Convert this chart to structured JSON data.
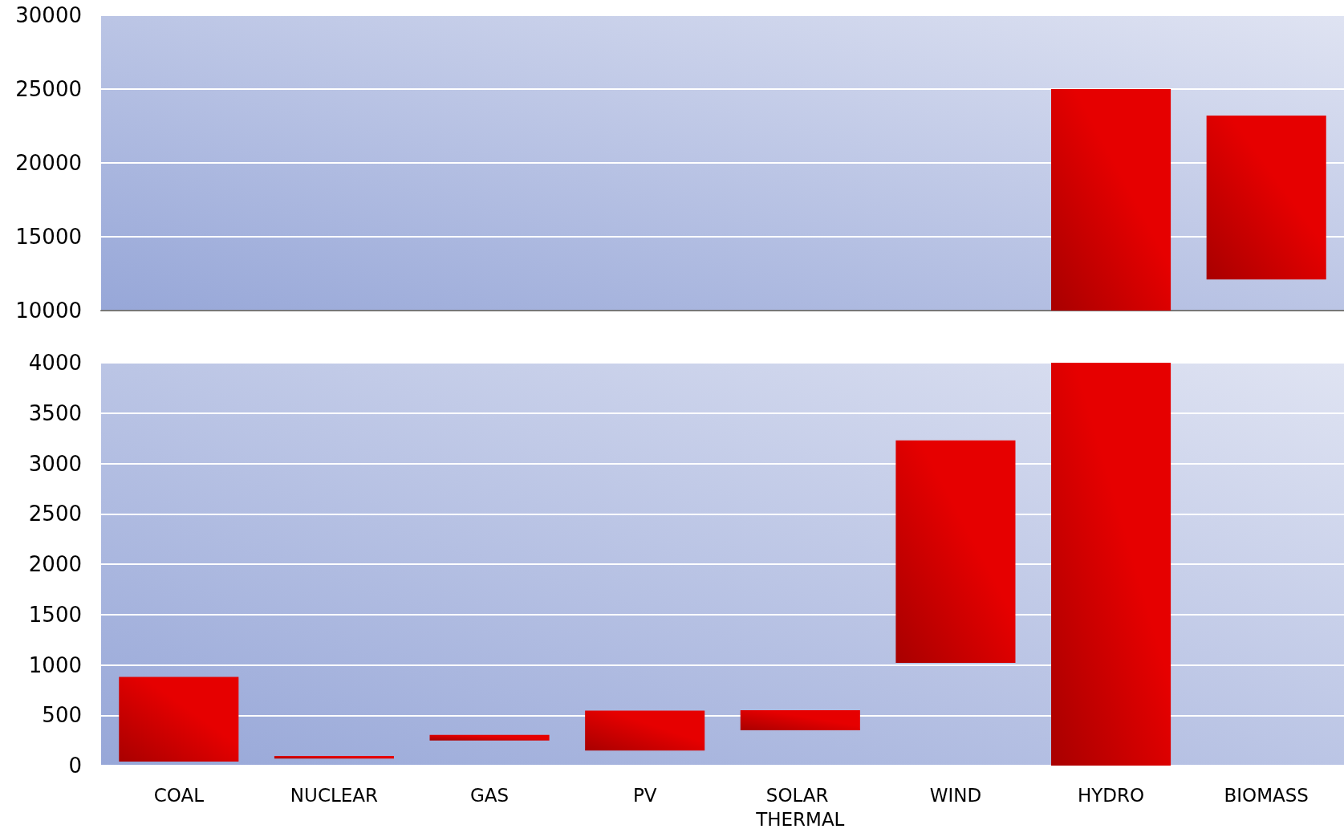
{
  "chart_data": [
    {
      "type": "bar",
      "categories": [
        "COAL",
        "NUCLEAR",
        "GAS",
        "PV",
        "SOLAR THERMAL",
        "WIND",
        "HYDRO",
        "BIOMASS"
      ],
      "base": [
        null,
        null,
        null,
        null,
        null,
        null,
        10000,
        12100
      ],
      "values": [
        null,
        null,
        null,
        null,
        null,
        null,
        15000,
        11100
      ],
      "color": "#e60000",
      "ylim": [
        10000,
        30000
      ],
      "yticks": [
        10000,
        15000,
        20000,
        25000,
        30000
      ],
      "grid": "y",
      "tick_labels": "y"
    },
    {
      "type": "bar",
      "categories": [
        "COAL",
        "NUCLEAR",
        "GAS",
        "PV",
        "SOLAR THERMAL",
        "WIND",
        "HYDRO",
        "BIOMASS"
      ],
      "base": [
        40,
        70,
        250,
        150,
        350,
        1020,
        0,
        null
      ],
      "values": [
        840,
        25,
        55,
        395,
        200,
        2210,
        4000,
        null
      ],
      "color": "#e60000",
      "ylim": [
        0,
        4000
      ],
      "yticks": [
        0,
        500,
        1000,
        1500,
        2000,
        2500,
        3000,
        3500,
        4000
      ],
      "grid": "y"
    }
  ]
}
